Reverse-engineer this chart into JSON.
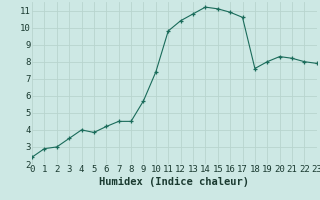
{
  "x": [
    0,
    1,
    2,
    3,
    4,
    5,
    6,
    7,
    8,
    9,
    10,
    11,
    12,
    13,
    14,
    15,
    16,
    17,
    18,
    19,
    20,
    21,
    22,
    23
  ],
  "y": [
    2.4,
    2.9,
    3.0,
    3.5,
    4.0,
    3.85,
    4.2,
    4.5,
    4.5,
    5.7,
    7.4,
    9.8,
    10.4,
    10.8,
    11.2,
    11.1,
    10.9,
    10.6,
    7.6,
    8.0,
    8.3,
    8.2,
    8.0,
    7.9
  ],
  "xlabel": "Humidex (Indice chaleur)",
  "xlim": [
    0,
    23
  ],
  "ylim": [
    2,
    11.5
  ],
  "yticks": [
    2,
    3,
    4,
    5,
    6,
    7,
    8,
    9,
    10,
    11
  ],
  "xticks": [
    0,
    1,
    2,
    3,
    4,
    5,
    6,
    7,
    8,
    9,
    10,
    11,
    12,
    13,
    14,
    15,
    16,
    17,
    18,
    19,
    20,
    21,
    22,
    23
  ],
  "line_color": "#1a6b5a",
  "marker_color": "#1a6b5a",
  "bg_color": "#cde8e4",
  "grid_color": "#b8d4ce",
  "tick_label_fontsize": 6.5,
  "xlabel_fontsize": 7.5
}
